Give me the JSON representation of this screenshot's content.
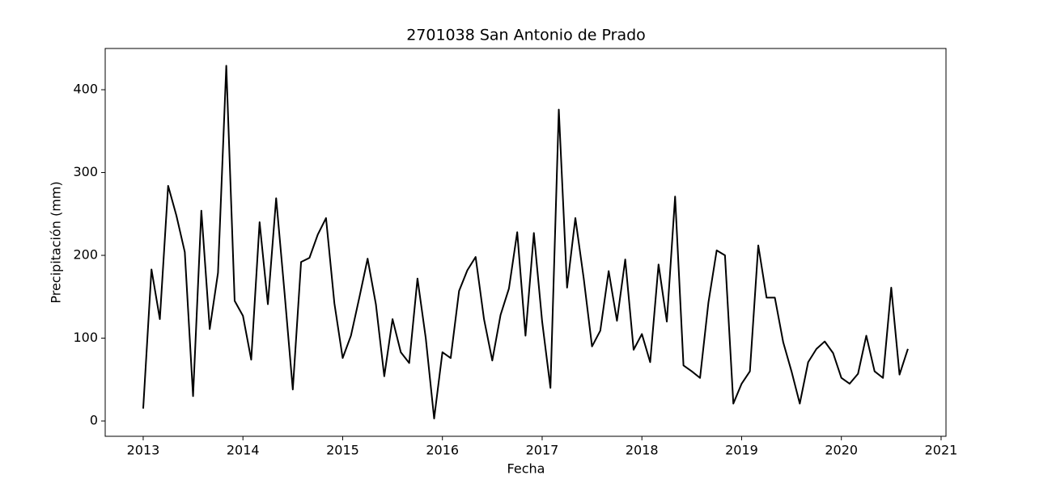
{
  "chart_data": {
    "type": "line",
    "title": "2701038 San Antonio de Prado",
    "xlabel": "Fecha",
    "ylabel": "Precipitación (mm)",
    "x": [
      2013,
      2013.083,
      2013.167,
      2013.25,
      2013.333,
      2013.417,
      2013.5,
      2013.583,
      2013.667,
      2013.75,
      2013.833,
      2013.917,
      2014,
      2014.083,
      2014.167,
      2014.25,
      2014.333,
      2014.417,
      2014.5,
      2014.583,
      2014.667,
      2014.75,
      2014.833,
      2014.917,
      2015,
      2015.083,
      2015.167,
      2015.25,
      2015.333,
      2015.417,
      2015.5,
      2015.583,
      2015.667,
      2015.75,
      2015.833,
      2015.917,
      2016,
      2016.083,
      2016.167,
      2016.25,
      2016.333,
      2016.417,
      2016.5,
      2016.583,
      2016.667,
      2016.75,
      2016.833,
      2016.917,
      2017,
      2017.083,
      2017.167,
      2017.25,
      2017.333,
      2017.417,
      2017.5,
      2017.583,
      2017.667,
      2017.75,
      2017.833,
      2017.917,
      2018,
      2018.083,
      2018.167,
      2018.25,
      2018.333,
      2018.417,
      2018.5,
      2018.583,
      2018.667,
      2018.75,
      2018.833,
      2018.917,
      2019,
      2019.083,
      2019.167,
      2019.25,
      2019.333,
      2019.417,
      2019.5,
      2019.583,
      2019.667,
      2019.75,
      2019.833,
      2019.917,
      2020,
      2020.083,
      2020.167,
      2020.25,
      2020.333,
      2020.417,
      2020.5,
      2020.583,
      2020.667
    ],
    "series": [
      {
        "name": "Precipitación",
        "color": "#000000",
        "values": [
          15,
          183,
          123,
          284,
          248,
          204,
          30,
          254,
          111,
          179,
          429,
          145,
          127,
          74,
          240,
          141,
          269,
          155,
          38,
          192,
          197,
          225,
          245,
          142,
          76,
          103,
          149,
          196,
          141,
          54,
          123,
          83,
          70,
          172,
          100,
          3,
          83,
          76,
          157,
          182,
          198,
          123,
          73,
          128,
          160,
          228,
          103,
          227,
          120,
          40,
          376,
          161,
          245,
          172,
          90,
          109,
          181,
          121,
          195,
          86,
          105,
          71,
          189,
          120,
          271,
          67,
          60,
          52,
          143,
          206,
          200,
          21,
          45,
          60,
          212,
          149,
          149,
          95,
          60,
          21,
          71,
          87,
          96,
          82,
          52,
          45,
          57,
          103,
          60,
          52,
          161,
          56,
          87
        ]
      }
    ],
    "xlim": [
      2012.619,
      2021.049
    ],
    "xticks": [
      2013,
      2014,
      2015,
      2016,
      2017,
      2018,
      2019,
      2020,
      2021
    ],
    "ylim": [
      -18.5,
      449.8
    ],
    "yticks": [
      0,
      100,
      200,
      300,
      400
    ],
    "grid": false
  }
}
